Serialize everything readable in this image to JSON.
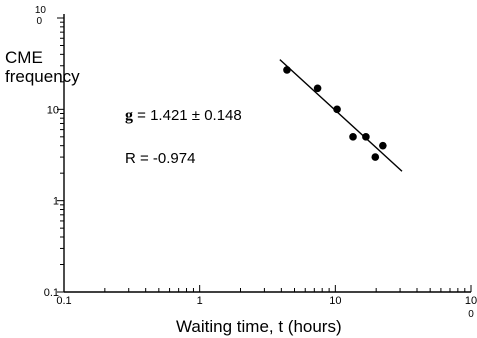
{
  "chart_data": {
    "type": "scatter",
    "title": "",
    "xlabel": "Waiting time, t (hours)",
    "ylabel_lines": [
      "CME",
      "frequency"
    ],
    "x_scale": "log",
    "y_scale": "log",
    "xlim": [
      0.1,
      100
    ],
    "ylim": [
      0.1,
      100
    ],
    "x_ticks": [
      {
        "value": 0.1,
        "label": "0.1"
      },
      {
        "value": 1,
        "label": "1"
      },
      {
        "value": 10,
        "label": "10"
      },
      {
        "value": 100,
        "label": "10",
        "sub": "0"
      }
    ],
    "y_ticks": [
      {
        "value": 0.1,
        "label": "0.1"
      },
      {
        "value": 1,
        "label": "1"
      },
      {
        "value": 10,
        "label": "10"
      },
      {
        "value": 100,
        "label": "10",
        "sub": "0"
      }
    ],
    "points": [
      {
        "x": 4.4,
        "y": 27
      },
      {
        "x": 7.4,
        "y": 17
      },
      {
        "x": 10.3,
        "y": 10
      },
      {
        "x": 13.5,
        "y": 5
      },
      {
        "x": 16.8,
        "y": 5
      },
      {
        "x": 19.7,
        "y": 3
      },
      {
        "x": 22.4,
        "y": 4
      }
    ],
    "fit_line": [
      {
        "x": 3.9,
        "y": 35
      },
      {
        "x": 31,
        "y": 2.1
      }
    ],
    "annotations": {
      "fit_symbol": "g",
      "fit_text": " = 1.421 ± 0.148",
      "r_text": "R = -0.974"
    },
    "grid": false,
    "legend": "none"
  }
}
